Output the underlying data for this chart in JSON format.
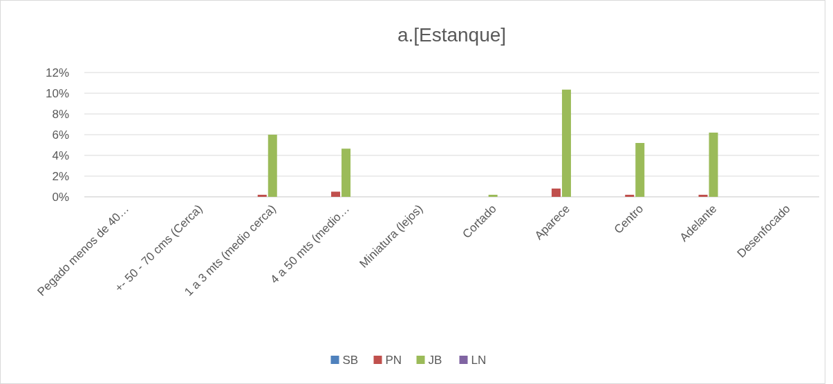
{
  "chart_data": {
    "type": "bar",
    "title": "a.[Estanque]",
    "categories": [
      "Pegado menos de 40…",
      "+- 50 - 70 cms (Cerca)",
      "1 a 3 mts (medio cerca)",
      "4 a 50 mts (medio…",
      "Miniatura (lejos)",
      "Cortado",
      "Aparece",
      "Centro",
      "Adelante",
      "Desenfocado"
    ],
    "series": [
      {
        "name": "SB",
        "color": "#4f81bd",
        "values": [
          0,
          0,
          0,
          0,
          0,
          0,
          0,
          0,
          0,
          0
        ]
      },
      {
        "name": "PN",
        "color": "#c0504d",
        "values": [
          0,
          0,
          0.2,
          0.5,
          0,
          0,
          0.8,
          0.2,
          0.2,
          0
        ]
      },
      {
        "name": "JB",
        "color": "#9bbb59",
        "values": [
          0,
          0,
          6.0,
          4.65,
          0,
          0.2,
          10.35,
          5.2,
          6.2,
          0
        ]
      },
      {
        "name": "LN",
        "color": "#8064a2",
        "values": [
          0,
          0,
          0,
          0,
          0,
          0,
          0,
          0,
          0,
          0
        ]
      }
    ],
    "ylim": [
      0,
      12
    ],
    "yticks": [
      {
        "value": 0,
        "label": "0%"
      },
      {
        "value": 2,
        "label": "2%"
      },
      {
        "value": 4,
        "label": "4%"
      },
      {
        "value": 6,
        "label": "6%"
      },
      {
        "value": 8,
        "label": "8%"
      },
      {
        "value": 10,
        "label": "10%"
      },
      {
        "value": 12,
        "label": "12%"
      }
    ],
    "grid": "y",
    "legend": "bottom"
  }
}
